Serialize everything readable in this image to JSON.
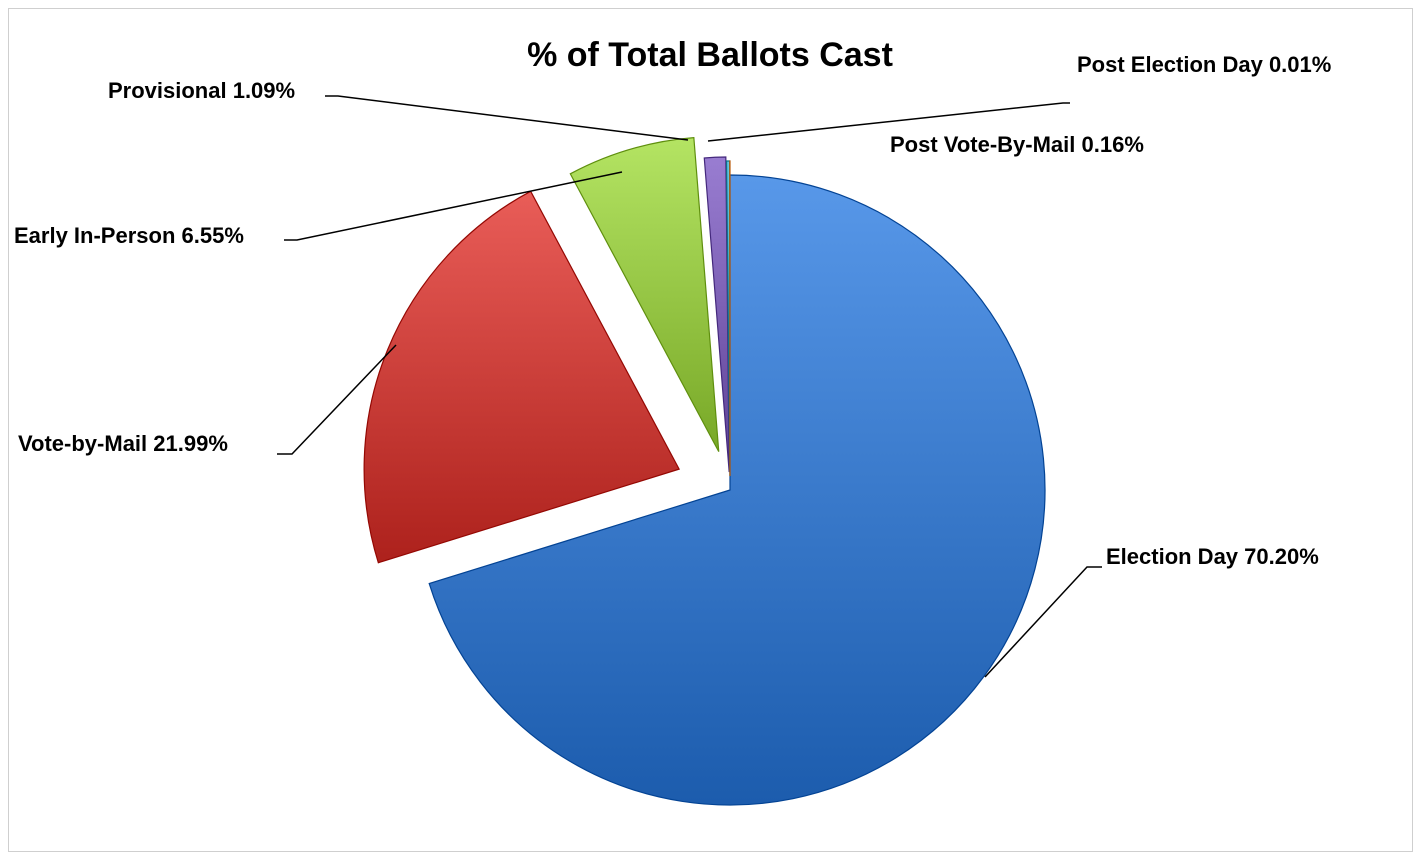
{
  "chart_data": {
    "type": "pie",
    "title": "% of Total Ballots Cast",
    "slices": [
      {
        "name": "Election Day",
        "value": 70.2,
        "label": "Election Day 70.20%",
        "color": "#3f7fd0"
      },
      {
        "name": "Vote-by-Mail",
        "value": 21.99,
        "label": "Vote-by-Mail 21.99%",
        "color": "#d0443f"
      },
      {
        "name": "Early In-Person",
        "value": 6.55,
        "label": "Early In-Person 6.55%",
        "color": "#9bcb4a"
      },
      {
        "name": "Provisional",
        "value": 1.09,
        "label": "Provisional 1.09%",
        "color": "#8064b8"
      },
      {
        "name": "Post Vote-By-Mail",
        "value": 0.16,
        "label": "Post Vote-By-Mail 0.16%",
        "color": "#4aacc6"
      },
      {
        "name": "Post Election Day",
        "value": 0.01,
        "label": "Post Election Day 0.01%",
        "color": "#f79646"
      }
    ],
    "legend": "none",
    "data_labels": "outside with leader lines"
  }
}
